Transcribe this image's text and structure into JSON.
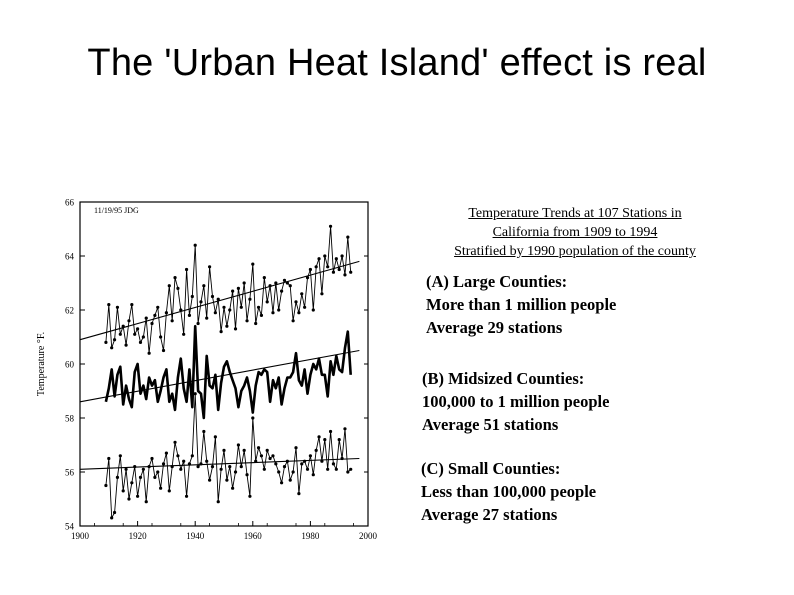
{
  "slide": {
    "title": "The 'Urban Heat Island' effect is real"
  },
  "caption": [
    "Temperature Trends at 107 Stations in",
    "California from 1909 to 1994",
    "Stratified by 1990 population of the county"
  ],
  "legend": [
    {
      "lines": [
        "(A) Large Counties:",
        "More than 1 million people",
        "Average 29 stations"
      ]
    },
    {
      "lines": [
        "(B) Midsized Counties:",
        "100,000 to 1 million people",
        "Average 51 stations"
      ]
    },
    {
      "lines": [
        "(C) Small Counties:",
        "Less than 100,000 people",
        "Average 27 stations"
      ]
    }
  ],
  "chart_data": {
    "type": "line",
    "stamp": "11/19/95 JDG",
    "ylabel": "Temperature °F.",
    "xlabel": "",
    "xlim": [
      1900,
      2000
    ],
    "ylim": [
      54,
      66
    ],
    "xticks": [
      1900,
      1920,
      1940,
      1960,
      1980,
      2000
    ],
    "yticks": [
      54,
      56,
      58,
      60,
      62,
      64,
      66
    ],
    "colors": {
      "line": "#000000",
      "background": "#ffffff"
    },
    "x": [
      1909,
      1910,
      1911,
      1912,
      1913,
      1914,
      1915,
      1916,
      1917,
      1918,
      1919,
      1920,
      1921,
      1922,
      1923,
      1924,
      1925,
      1926,
      1927,
      1928,
      1929,
      1930,
      1931,
      1932,
      1933,
      1934,
      1935,
      1936,
      1937,
      1938,
      1939,
      1940,
      1941,
      1942,
      1943,
      1944,
      1945,
      1946,
      1947,
      1948,
      1949,
      1950,
      1951,
      1952,
      1953,
      1954,
      1955,
      1956,
      1957,
      1958,
      1959,
      1960,
      1961,
      1962,
      1963,
      1964,
      1965,
      1966,
      1967,
      1968,
      1969,
      1970,
      1971,
      1972,
      1973,
      1974,
      1975,
      1976,
      1977,
      1978,
      1979,
      1980,
      1981,
      1982,
      1983,
      1984,
      1985,
      1986,
      1987,
      1988,
      1989,
      1990,
      1991,
      1992,
      1993,
      1994
    ],
    "series": [
      {
        "name": "(A) Large Counties",
        "style": "thin-markers",
        "values": [
          60.8,
          62.2,
          60.6,
          60.9,
          62.1,
          61.1,
          61.4,
          60.7,
          61.6,
          62.2,
          61.1,
          61.3,
          60.8,
          61.0,
          61.7,
          60.4,
          61.5,
          61.8,
          62.1,
          61.0,
          60.5,
          61.9,
          62.9,
          61.6,
          63.2,
          62.8,
          62.0,
          61.1,
          63.5,
          61.8,
          62.5,
          64.4,
          61.5,
          62.3,
          62.9,
          61.7,
          63.6,
          62.5,
          61.9,
          62.4,
          61.2,
          62.1,
          61.4,
          62.0,
          62.7,
          61.3,
          62.8,
          62.1,
          63.0,
          61.6,
          62.4,
          63.7,
          61.5,
          62.1,
          61.8,
          63.2,
          62.3,
          62.9,
          61.9,
          63.0,
          62.0,
          62.7,
          63.1,
          63.0,
          62.9,
          61.6,
          62.3,
          61.9,
          62.6,
          62.1,
          63.2,
          63.5,
          62.0,
          63.6,
          63.9,
          62.6,
          64.0,
          63.6,
          65.1,
          63.4,
          63.9,
          63.5,
          64.0,
          63.3,
          64.7,
          63.4
        ]
      },
      {
        "name": "(B) Midsized Counties",
        "style": "thick",
        "values": [
          58.6,
          59.1,
          59.8,
          58.8,
          59.6,
          59.9,
          58.5,
          59.2,
          58.7,
          58.4,
          59.7,
          60.0,
          58.9,
          59.2,
          58.7,
          59.5,
          59.2,
          59.4,
          58.6,
          59.0,
          59.5,
          59.8,
          58.6,
          58.9,
          58.3,
          59.5,
          60.2,
          59.1,
          58.6,
          59.8,
          58.4,
          61.4,
          59.0,
          58.9,
          58.0,
          60.3,
          59.2,
          59.1,
          59.6,
          58.3,
          59.3,
          59.9,
          60.1,
          59.7,
          59.4,
          59.1,
          58.4,
          59.0,
          59.2,
          59.5,
          59.0,
          58.2,
          59.2,
          59.7,
          59.6,
          59.8,
          59.7,
          58.6,
          59.4,
          59.1,
          59.5,
          58.5,
          59.1,
          59.5,
          59.5,
          59.7,
          60.4,
          59.4,
          59.2,
          59.8,
          58.9,
          59.6,
          60.0,
          59.8,
          60.2,
          59.6,
          59.6,
          58.8,
          60.1,
          59.6,
          60.3,
          59.8,
          59.7,
          60.6,
          61.2,
          59.6
        ]
      },
      {
        "name": "(C) Small Counties",
        "style": "thin-markers",
        "values": [
          55.5,
          56.5,
          54.3,
          54.5,
          55.8,
          56.6,
          55.3,
          56.1,
          55.0,
          55.6,
          56.2,
          55.1,
          55.8,
          56.1,
          54.9,
          56.2,
          56.5,
          55.8,
          56.0,
          55.4,
          56.3,
          56.7,
          55.3,
          56.2,
          57.1,
          56.6,
          56.1,
          56.4,
          55.1,
          56.3,
          56.6,
          58.9,
          56.2,
          56.3,
          57.5,
          56.4,
          55.7,
          56.2,
          57.3,
          54.9,
          56.1,
          56.8,
          55.7,
          56.2,
          55.4,
          56.0,
          57.0,
          56.2,
          56.8,
          55.9,
          55.1,
          58.0,
          56.4,
          56.9,
          56.6,
          56.1,
          56.8,
          56.5,
          56.6,
          56.3,
          56.0,
          55.6,
          56.2,
          56.4,
          55.7,
          56.0,
          56.9,
          55.2,
          56.3,
          56.4,
          56.1,
          56.6,
          55.9,
          56.8,
          57.3,
          56.4,
          57.2,
          56.1,
          57.5,
          56.3,
          56.1,
          57.2,
          56.5,
          57.6,
          56.0,
          56.1
        ]
      }
    ],
    "trendlines": [
      {
        "series": "(A) Large Counties",
        "x": [
          1900,
          1997
        ],
        "y": [
          60.9,
          63.8
        ]
      },
      {
        "series": "(B) Midsized Counties",
        "x": [
          1900,
          1997
        ],
        "y": [
          58.6,
          60.5
        ]
      },
      {
        "series": "(C) Small Counties",
        "x": [
          1900,
          1997
        ],
        "y": [
          56.1,
          56.5
        ]
      }
    ],
    "grid": false,
    "legend": "none"
  }
}
